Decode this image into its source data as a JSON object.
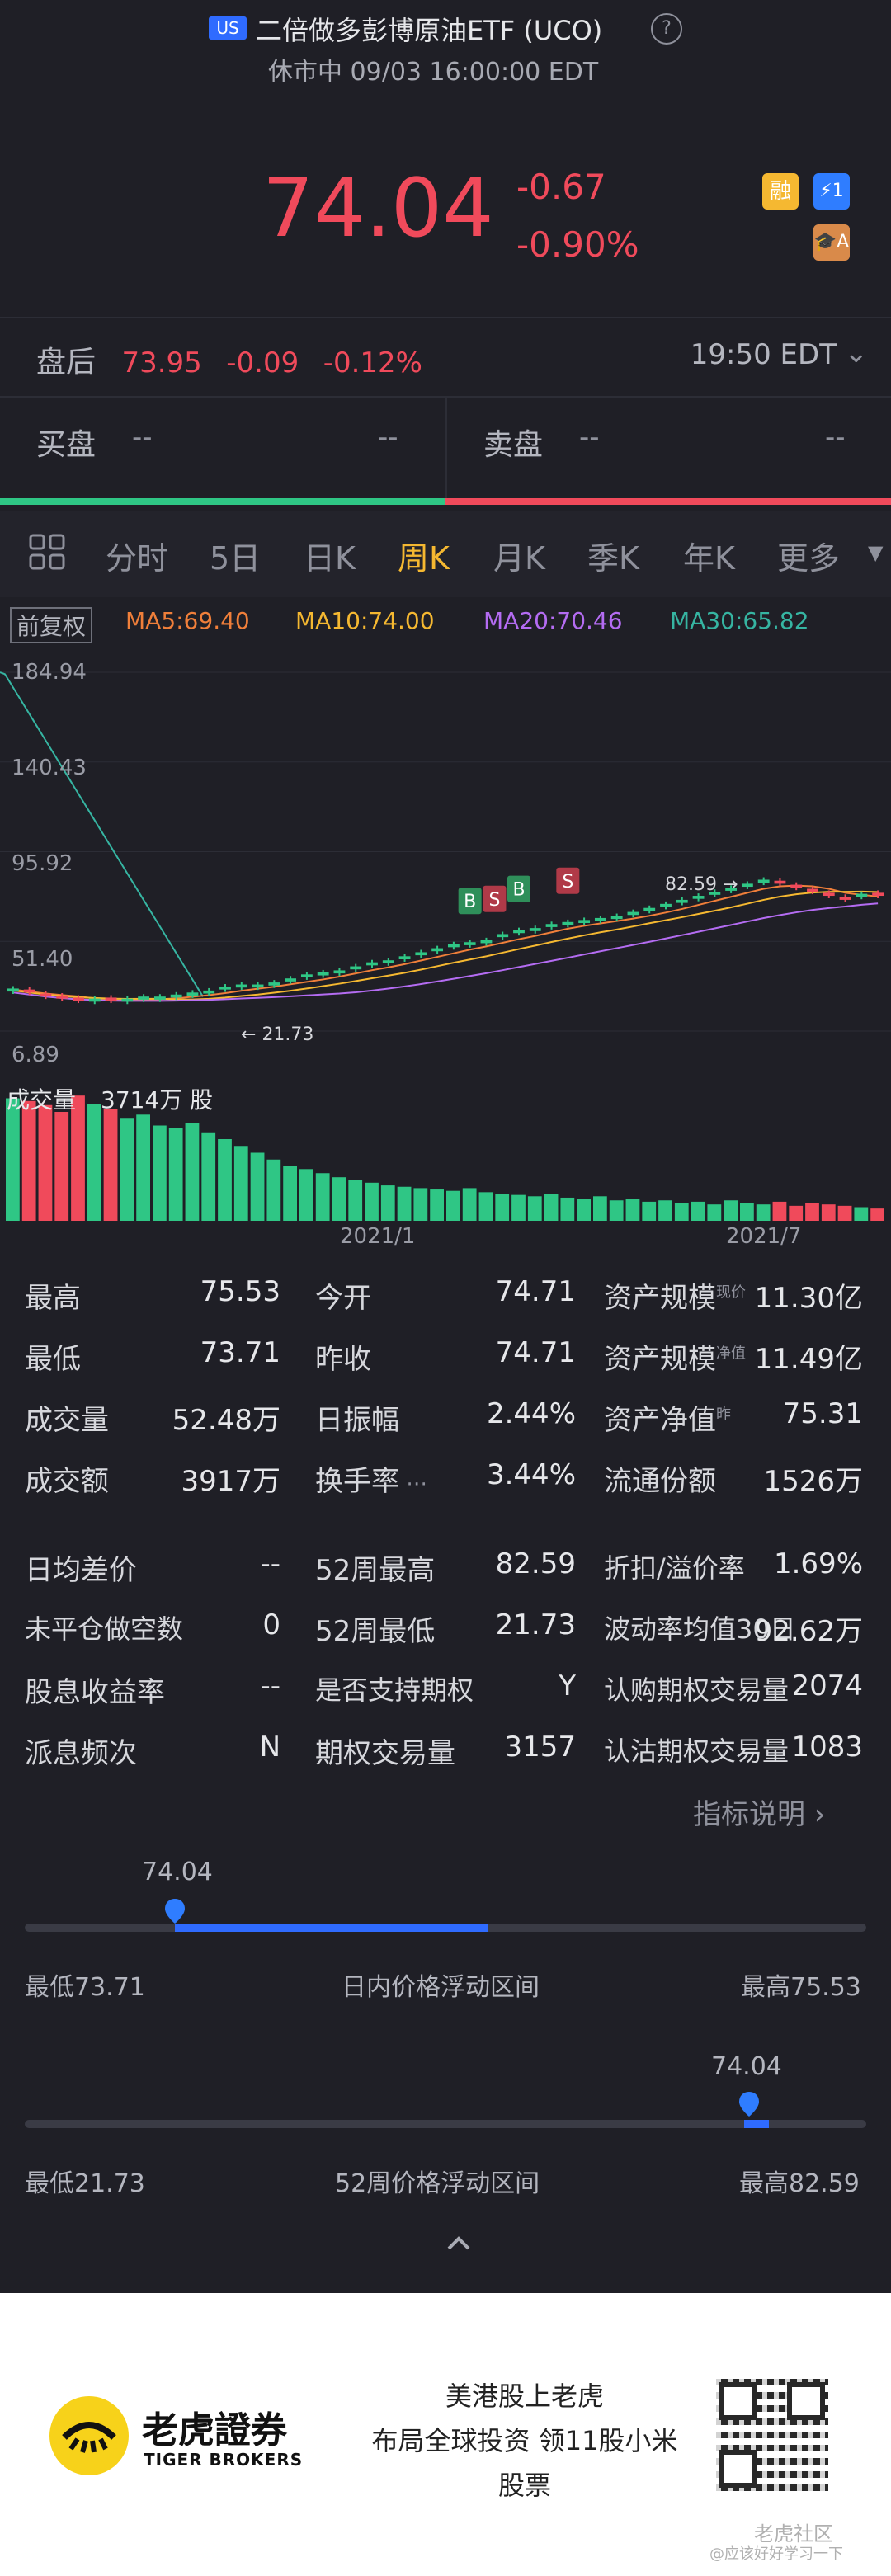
{
  "header": {
    "market_badge": "US",
    "title": "二倍做多彭博原油ETF (UCO)",
    "status": "休市中 09/03 16:00:00 EDT",
    "price": "74.04",
    "change": "-0.67",
    "change_pct": "-0.90%",
    "badges": [
      "融",
      "⚡1",
      "🎓A"
    ]
  },
  "after_hours": {
    "label": "盘后",
    "price": "73.95",
    "change": "-0.09",
    "change_pct": "-0.12%",
    "time": "19:50 EDT"
  },
  "order_book": {
    "bid_label": "买盘",
    "bid_val1": "--",
    "bid_val2": "--",
    "ask_label": "卖盘",
    "ask_val1": "--",
    "ask_val2": "--"
  },
  "tabs": [
    "分时",
    "5日",
    "日K",
    "周K",
    "月K",
    "季K",
    "年K",
    "更多"
  ],
  "active_tab": "周K",
  "ma": {
    "adjust": "前复权",
    "ma5": "MA5:69.40",
    "ma10": "MA10:74.00",
    "ma20": "MA20:70.46",
    "ma30": "MA30:65.82",
    "ma5_color": "#f07f3a",
    "ma10_color": "#f5b831",
    "ma20_color": "#a45ae8",
    "ma30_color": "#36b5a2"
  },
  "chart_data": {
    "type": "candlestick",
    "y_ticks": [
      "184.94",
      "140.43",
      "95.92",
      "51.40",
      "6.89"
    ],
    "x_ticks": [
      "2021/1",
      "2021/7"
    ],
    "low_marker": "21.73",
    "high_marker": "82.59",
    "volume_label": "成交量",
    "volume_value": "3714万 股",
    "trade_markers": [
      "B",
      "S",
      "B",
      "S"
    ],
    "close_series": [
      28,
      26,
      24,
      23,
      22,
      23,
      22,
      23,
      24,
      24,
      25,
      26,
      27,
      29,
      30,
      30,
      31,
      33,
      35,
      36,
      37,
      39,
      41,
      42,
      44,
      46,
      48,
      50,
      51,
      52,
      55,
      57,
      58,
      60,
      61,
      62,
      63,
      64,
      66,
      68,
      70,
      72,
      74,
      76,
      78,
      80,
      82,
      80,
      78,
      76,
      74,
      72,
      75,
      74
    ],
    "volume_series": [
      90,
      88,
      85,
      80,
      92,
      86,
      82,
      75,
      78,
      70,
      68,
      72,
      65,
      60,
      55,
      50,
      45,
      40,
      38,
      35,
      32,
      30,
      28,
      26,
      25,
      24,
      23,
      22,
      24,
      21,
      20,
      19,
      18,
      20,
      17,
      16,
      18,
      15,
      16,
      14,
      15,
      13,
      14,
      12,
      15,
      13,
      12,
      14,
      11,
      13,
      12,
      11,
      10,
      9
    ]
  },
  "stats": {
    "rows": [
      [
        [
          "最高",
          "75.53"
        ],
        [
          "今开",
          "74.71"
        ],
        [
          "资产规模",
          "现价",
          "11.30亿"
        ]
      ],
      [
        [
          "最低",
          "73.71"
        ],
        [
          "昨收",
          "74.71"
        ],
        [
          "资产规模",
          "净值",
          "11.49亿"
        ]
      ],
      [
        [
          "成交量",
          "52.48万"
        ],
        [
          "日振幅",
          "2.44%"
        ],
        [
          "资产净值",
          "昨",
          "75.31"
        ]
      ],
      [
        [
          "成交额",
          "3917万"
        ],
        [
          "换手率",
          "3.44%"
        ],
        [
          "流通份额",
          "",
          "1526万"
        ]
      ]
    ],
    "rows2": [
      [
        [
          "日均差价",
          "--"
        ],
        [
          "52周最高",
          "82.59"
        ],
        [
          "折扣/溢价率",
          "1.69%"
        ]
      ],
      [
        [
          "未平仓做空数",
          "0"
        ],
        [
          "52周最低",
          "21.73"
        ],
        [
          "波动率均值30日",
          "92.62万"
        ]
      ],
      [
        [
          "股息收益率",
          "--"
        ],
        [
          "是否支持期权",
          "Y"
        ],
        [
          "认购期权交易量",
          "2074"
        ]
      ],
      [
        [
          "派息频次",
          "N"
        ],
        [
          "期权交易量",
          "3157"
        ],
        [
          "认沽期权交易量",
          "1083"
        ]
      ]
    ],
    "indicator_link": "指标说明"
  },
  "ranges": {
    "intraday": {
      "current": "74.04",
      "low": "最低73.71",
      "title": "日内价格浮动区间",
      "high": "最高75.53",
      "position": 0.18
    },
    "week52": {
      "current": "74.04",
      "low": "最低21.73",
      "title": "52周价格浮动区间",
      "high": "最高82.59",
      "position": 0.86
    }
  },
  "footer": {
    "brand_cn": "老虎證券",
    "brand_en": "TIGER BROKERS",
    "slogan": "美港股上老虎\n布局全球投资 领11股小米股票",
    "watermark": "老虎社区",
    "watermark_sub": "@应该好好学习一下"
  }
}
